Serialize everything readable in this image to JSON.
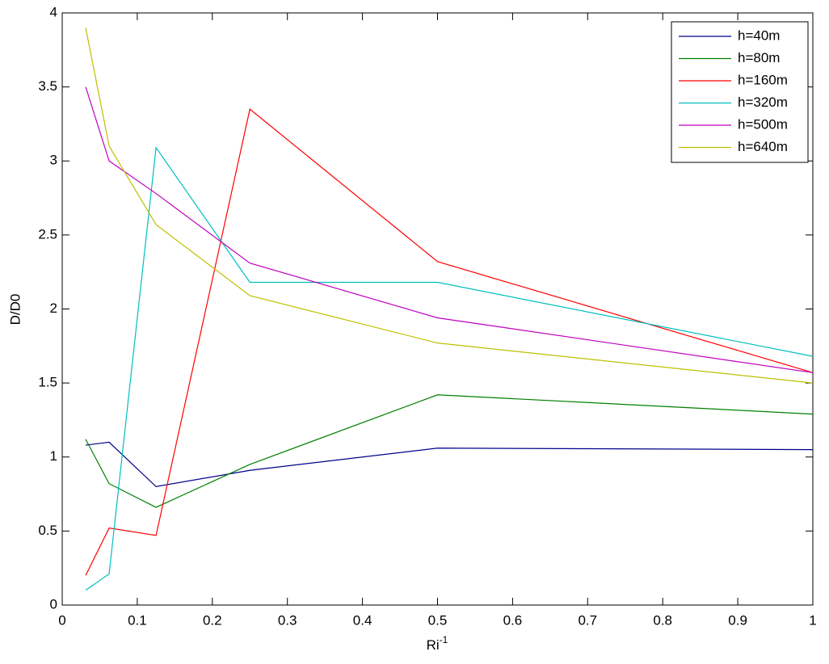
{
  "chart_data": {
    "type": "line",
    "x_label": "Ri",
    "x_label_sup": "-1",
    "y_label": "D/D0",
    "x": [
      0.03125,
      0.0625,
      0.125,
      0.25,
      0.5,
      1
    ],
    "series": [
      {
        "name": "h=40m",
        "color": "#00008b",
        "values": [
          1.08,
          1.1,
          0.8,
          0.91,
          1.06,
          1.05
        ]
      },
      {
        "name": "h=80m",
        "color": "#007f00",
        "values": [
          1.12,
          0.82,
          0.66,
          0.95,
          1.42,
          1.29
        ]
      },
      {
        "name": "h=160m",
        "color": "#ff0000",
        "values": [
          0.2,
          0.52,
          0.47,
          3.35,
          2.32,
          1.57
        ]
      },
      {
        "name": "h=320m",
        "color": "#00bfbf",
        "values": [
          0.1,
          0.21,
          3.09,
          2.18,
          2.18,
          1.68
        ]
      },
      {
        "name": "h=500m",
        "color": "#bf00bf",
        "values": [
          3.5,
          3.0,
          2.78,
          2.31,
          1.94,
          1.57
        ]
      },
      {
        "name": "h=640m",
        "color": "#bfbf00",
        "values": [
          3.9,
          3.1,
          2.57,
          2.09,
          1.77,
          1.5
        ]
      }
    ],
    "xlim": [
      0,
      1
    ],
    "xticks": [
      0,
      0.1,
      0.2,
      0.3,
      0.4,
      0.5,
      0.6,
      0.7,
      0.8,
      0.9,
      1
    ],
    "ylim": [
      0,
      4
    ],
    "yticks": [
      0,
      0.5,
      1,
      1.5,
      2,
      2.5,
      3,
      3.5,
      4
    ],
    "grid": false,
    "legend": "top-right"
  }
}
